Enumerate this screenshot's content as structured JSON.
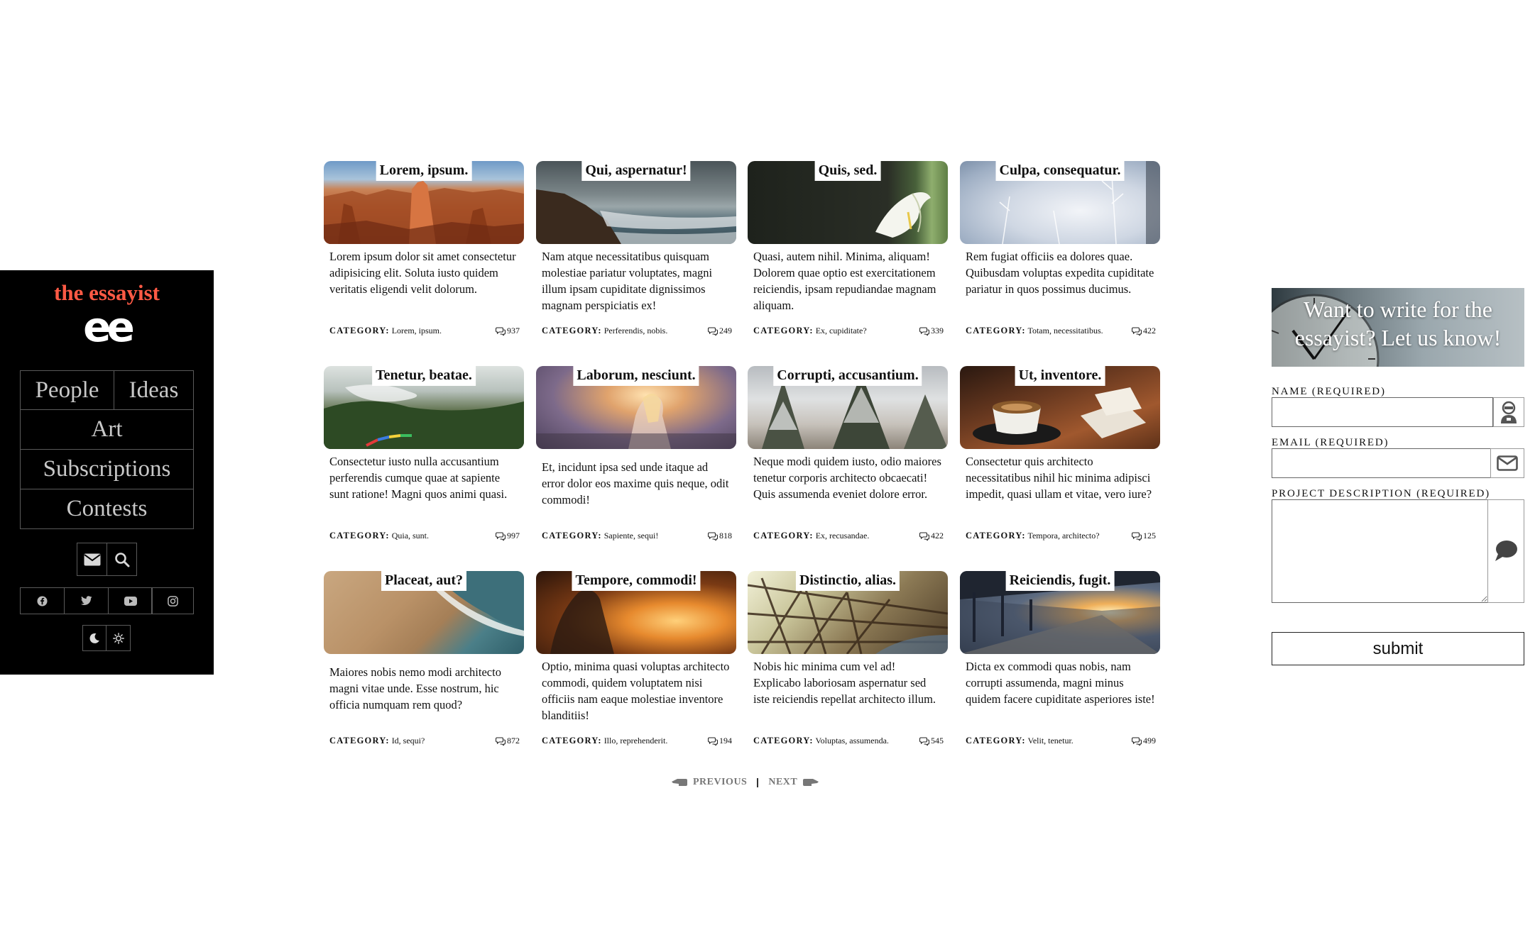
{
  "sidebar": {
    "brand_name": "the essayist",
    "brand_logo": "ee",
    "nav": [
      "People",
      "Ideas",
      "Art",
      "Subscriptions",
      "Contests"
    ],
    "tool_icons": [
      "envelope-icon",
      "search-icon"
    ],
    "social_icons": [
      "facebook-icon",
      "twitter-icon",
      "youtube-icon",
      "instagram-icon"
    ],
    "theme_icons": [
      "moon-icon",
      "sun-icon"
    ]
  },
  "cards": [
    {
      "title": "Lorem, ipsum.",
      "excerpt": "Lorem ipsum dolor sit amet consectetur adipisicing elit. Soluta iusto quidem veritatis eligendi velit dolorum.",
      "category_label": "CATEGORY:",
      "category": "Lorem, ipsum.",
      "comments": "937",
      "image": "canyon-hoodoos"
    },
    {
      "title": "Qui, aspernatur!",
      "excerpt": "Nam atque necessitatibus quisquam molestiae pariatur voluptates, magni illum ipsam cupiditate dignissimos magnam perspiciatis ex!",
      "category_label": "CATEGORY:",
      "category": "Perferendis, nobis.",
      "comments": "249",
      "image": "rocky-coast"
    },
    {
      "title": "Quis, sed.",
      "excerpt": "Quasi, autem nihil. Minima, aliquam! Dolorem quae optio est exercitationem reiciendis, ipsam repudiandae magnam aliquam.",
      "category_label": "CATEGORY:",
      "category": "Ex, cupiditate?",
      "comments": "339",
      "image": "calla-lily"
    },
    {
      "title": "Culpa, consequatur.",
      "excerpt": "Rem fugiat officiis ea dolores quae. Quibusdam voluptas expedita cupiditate pariatur in quos possimus ducimus.",
      "category_label": "CATEGORY:",
      "category": "Totam, necessitatibus.",
      "comments": "422",
      "image": "frosted-plants"
    },
    {
      "title": "Tenetur, beatae.",
      "excerpt": "Consectetur iusto nulla accusantium perferendis cumque quae at sapiente sunt ratione! Magni quos animi quasi.",
      "category_label": "CATEGORY:",
      "category": "Quia, sunt.",
      "comments": "997",
      "image": "misty-valley"
    },
    {
      "title": "Laborum, nesciunt.",
      "excerpt": "Et, incidunt ipsa sed unde itaque ad error dolor eos maxime quis neque, odit commodi!",
      "category_label": "CATEGORY:",
      "category": "Sapiente, sequi!",
      "comments": "818",
      "image": "girl-sunset"
    },
    {
      "title": "Corrupti, accusantium.",
      "excerpt": "Neque modi quidem iusto, odio maiores tenetur corporis architecto obcaecati! Quis assumenda eveniet dolore error.",
      "category_label": "CATEGORY:",
      "category": "Ex, recusandae.",
      "comments": "422",
      "image": "snowy-pines"
    },
    {
      "title": "Ut, inventore.",
      "excerpt": "Consectetur quis architecto necessitatibus nihil hic minima adipisci impedit, quasi ullam et vitae, vero iure?",
      "category_label": "CATEGORY:",
      "category": "Tempora, architecto?",
      "comments": "125",
      "image": "coffee-cup"
    },
    {
      "title": "Placeat, aut?",
      "excerpt": "Maiores nobis nemo modi architecto magni vitae unde. Esse nostrum, hic officia numquam rem quod?",
      "category_label": "CATEGORY:",
      "category": "Id, sequi?",
      "comments": "872",
      "image": "beach-waves"
    },
    {
      "title": "Tempore, commodi!",
      "excerpt": "Optio, minima quasi voluptas architecto commodi, quidem voluptatem nisi officiis nam eaque molestiae inventore blanditiis!",
      "category_label": "CATEGORY:",
      "category": "Illo, reprehenderit.",
      "comments": "194",
      "image": "fire-silhouette"
    },
    {
      "title": "Distinctio, alias.",
      "excerpt": "Nobis hic minima cum vel ad! Explicabo laboriosam aspernatur sed iste reiciendis repellat architecto illum.",
      "category_label": "CATEGORY:",
      "category": "Voluptas, assumenda.",
      "comments": "545",
      "image": "steel-bridge"
    },
    {
      "title": "Reiciendis, fugit.",
      "excerpt": "Dicta ex commodi quas nobis, nam corrupti assumenda, magni minus quidem facere cupiditate asperiores iste!",
      "category_label": "CATEGORY:",
      "category": "Velit, tenetur.",
      "comments": "499",
      "image": "train-platform"
    }
  ],
  "pagination": {
    "previous": "PREVIOUS",
    "next": "NEXT"
  },
  "form": {
    "banner": "Want to write for the essayist? Let us know!",
    "name_label": "NAME (REQUIRED)",
    "email_label": "EMAIL (REQUIRED)",
    "project_label": "PROJECT DESCRIPTION (REQUIRED)",
    "name_value": "",
    "email_value": "",
    "project_value": "",
    "submit": "submit"
  },
  "colors": {
    "brand": "#ff5a45",
    "sidebar_bg": "#000000",
    "nav_text": "#c8c8c8",
    "nav_border": "#5a5a5a"
  }
}
